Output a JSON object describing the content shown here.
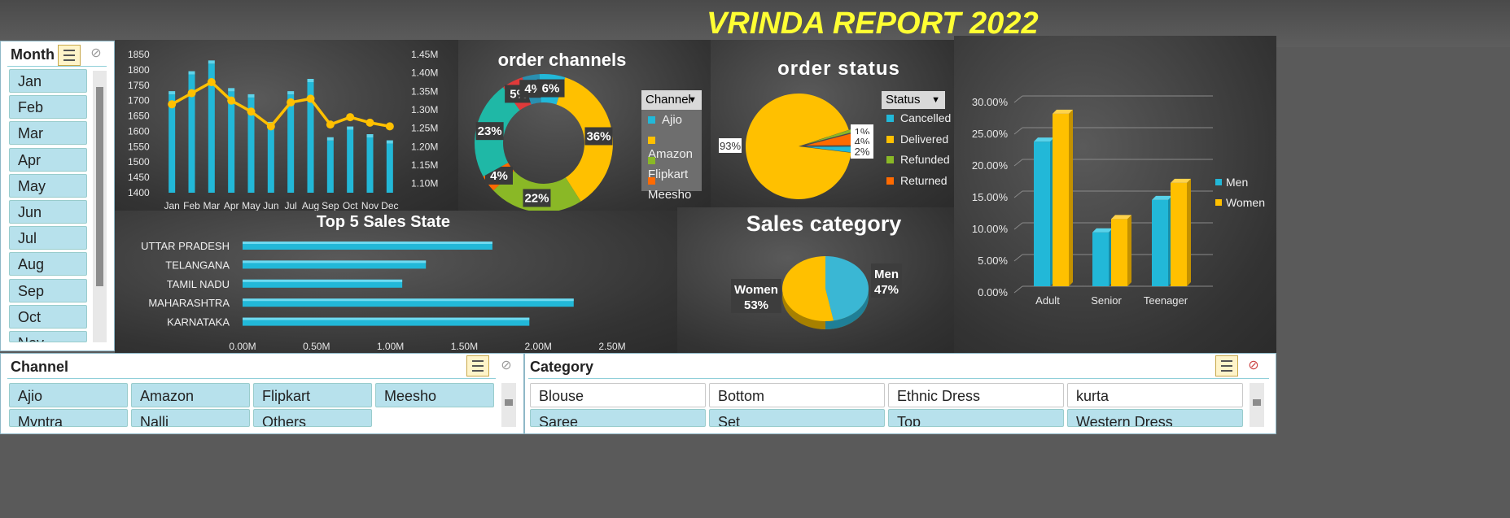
{
  "title": "VRINDA REPORT 2022",
  "colors": {
    "cyan": "#22b8d8",
    "gold": "#ffc000",
    "green": "#8ab826",
    "teal": "#1fb8a6",
    "red": "#e03a3a",
    "orange": "#ff6a00"
  },
  "month_slicer": {
    "header": "Month",
    "items": [
      "Jan",
      "Feb",
      "Mar",
      "Apr",
      "May",
      "Jun",
      "Jul",
      "Aug",
      "Sep",
      "Oct",
      "Nov"
    ]
  },
  "channel_slicer": {
    "header": "Channel",
    "items": [
      "Ajio",
      "Amazon",
      "Flipkart",
      "Meesho",
      "Myntra",
      "Nalli",
      "Others"
    ]
  },
  "category_slicer": {
    "header": "Category",
    "items": [
      {
        "label": "Blouse",
        "selected": false
      },
      {
        "label": "Bottom",
        "selected": false
      },
      {
        "label": "Ethnic Dress",
        "selected": false
      },
      {
        "label": "kurta",
        "selected": false
      },
      {
        "label": "Saree",
        "selected": true
      },
      {
        "label": "Set",
        "selected": true
      },
      {
        "label": "Top",
        "selected": true
      },
      {
        "label": "Western Dress",
        "selected": true
      }
    ]
  },
  "chart_data": [
    {
      "type": "bar+line",
      "categories": [
        "Jan",
        "Feb",
        "Mar",
        "Apr",
        "May",
        "Jun",
        "Jul",
        "Aug",
        "Sep",
        "Oct",
        "Nov",
        "Dec"
      ],
      "bar_values": [
        1720,
        1785,
        1820,
        1730,
        1710,
        1620,
        1720,
        1760,
        1570,
        1605,
        1580,
        1560
      ],
      "line_values": [
        1.315,
        1.345,
        1.375,
        1.325,
        1.295,
        1.255,
        1.32,
        1.33,
        1.26,
        1.28,
        1.265,
        1.255
      ],
      "left_ticks": [
        "1850",
        "1800",
        "1750",
        "1700",
        "1650",
        "1600",
        "1550",
        "1500",
        "1450",
        "1400"
      ],
      "right_ticks": [
        "1.45M",
        "1.40M",
        "1.35M",
        "1.30M",
        "1.25M",
        "1.20M",
        "1.15M",
        "1.10M"
      ],
      "ylim_left": [
        1400,
        1850
      ],
      "ylim_right": [
        1.075,
        1.45
      ]
    },
    {
      "type": "donut",
      "title": "order channels",
      "legend_header": "Channel",
      "legend": [
        "Ajio",
        "Amazon",
        "Flipkart",
        "Meesho"
      ],
      "slices": [
        {
          "value": 36,
          "label": "36%",
          "color": "#ffc000"
        },
        {
          "value": 22,
          "label": "22%",
          "color": "#8ab826"
        },
        {
          "value": 4,
          "label": "4%",
          "color": "#ff6a00"
        },
        {
          "value": 23,
          "label": "23%",
          "color": "#1fb8a6"
        },
        {
          "value": 5,
          "label": "5%",
          "color": "#e03a3a"
        },
        {
          "value": 4,
          "label": "4%",
          "color": "#2a8fb0"
        },
        {
          "value": 6,
          "label": "6%",
          "color": "#22b8d8"
        }
      ]
    },
    {
      "type": "pie",
      "title": "order status",
      "legend_header": "Status",
      "legend": [
        "Cancelled",
        "Delivered",
        "Refunded",
        "Returned"
      ],
      "slices": [
        {
          "value": 93,
          "label": "93%",
          "color": "#ffc000"
        },
        {
          "value": 1,
          "label": "1%",
          "color": "#8ab826"
        },
        {
          "value": 4,
          "label": "4%",
          "color": "#ff6a00"
        },
        {
          "value": 2,
          "label": "2%",
          "color": "#22b8d8"
        }
      ]
    },
    {
      "type": "bar",
      "orientation": "horizontal",
      "title": "Top 5 Sales State",
      "categories": [
        "UTTAR PRADESH",
        "TELANGANA",
        "TAMIL NADU",
        "MAHARASHTRA",
        "KARNATAKA"
      ],
      "values": [
        1.69,
        1.24,
        1.08,
        2.24,
        1.94
      ],
      "x_ticks": [
        "0.00M",
        "0.50M",
        "1.00M",
        "1.50M",
        "2.00M",
        "2.50M"
      ],
      "xlim": [
        0,
        2.5
      ]
    },
    {
      "type": "pie",
      "title": "Sales  category",
      "slices": [
        {
          "name": "Men",
          "value": 47,
          "label": "47%",
          "color": "#3ab7d4"
        },
        {
          "name": "Women",
          "value": 53,
          "label": "53%",
          "color": "#ffc000"
        }
      ]
    },
    {
      "type": "bar",
      "categories": [
        "Adult",
        "Senior",
        "Teenager"
      ],
      "series": [
        {
          "name": "Men",
          "values": [
            22.8,
            8.5,
            13.6
          ],
          "color": "#22b8d8"
        },
        {
          "name": "Women",
          "values": [
            27.2,
            10.6,
            16.3
          ],
          "color": "#ffc000"
        }
      ],
      "y_ticks": [
        "30.00%",
        "25.00%",
        "20.00%",
        "15.00%",
        "10.00%",
        "5.00%",
        "0.00%"
      ],
      "ylim": [
        0,
        30
      ]
    }
  ]
}
